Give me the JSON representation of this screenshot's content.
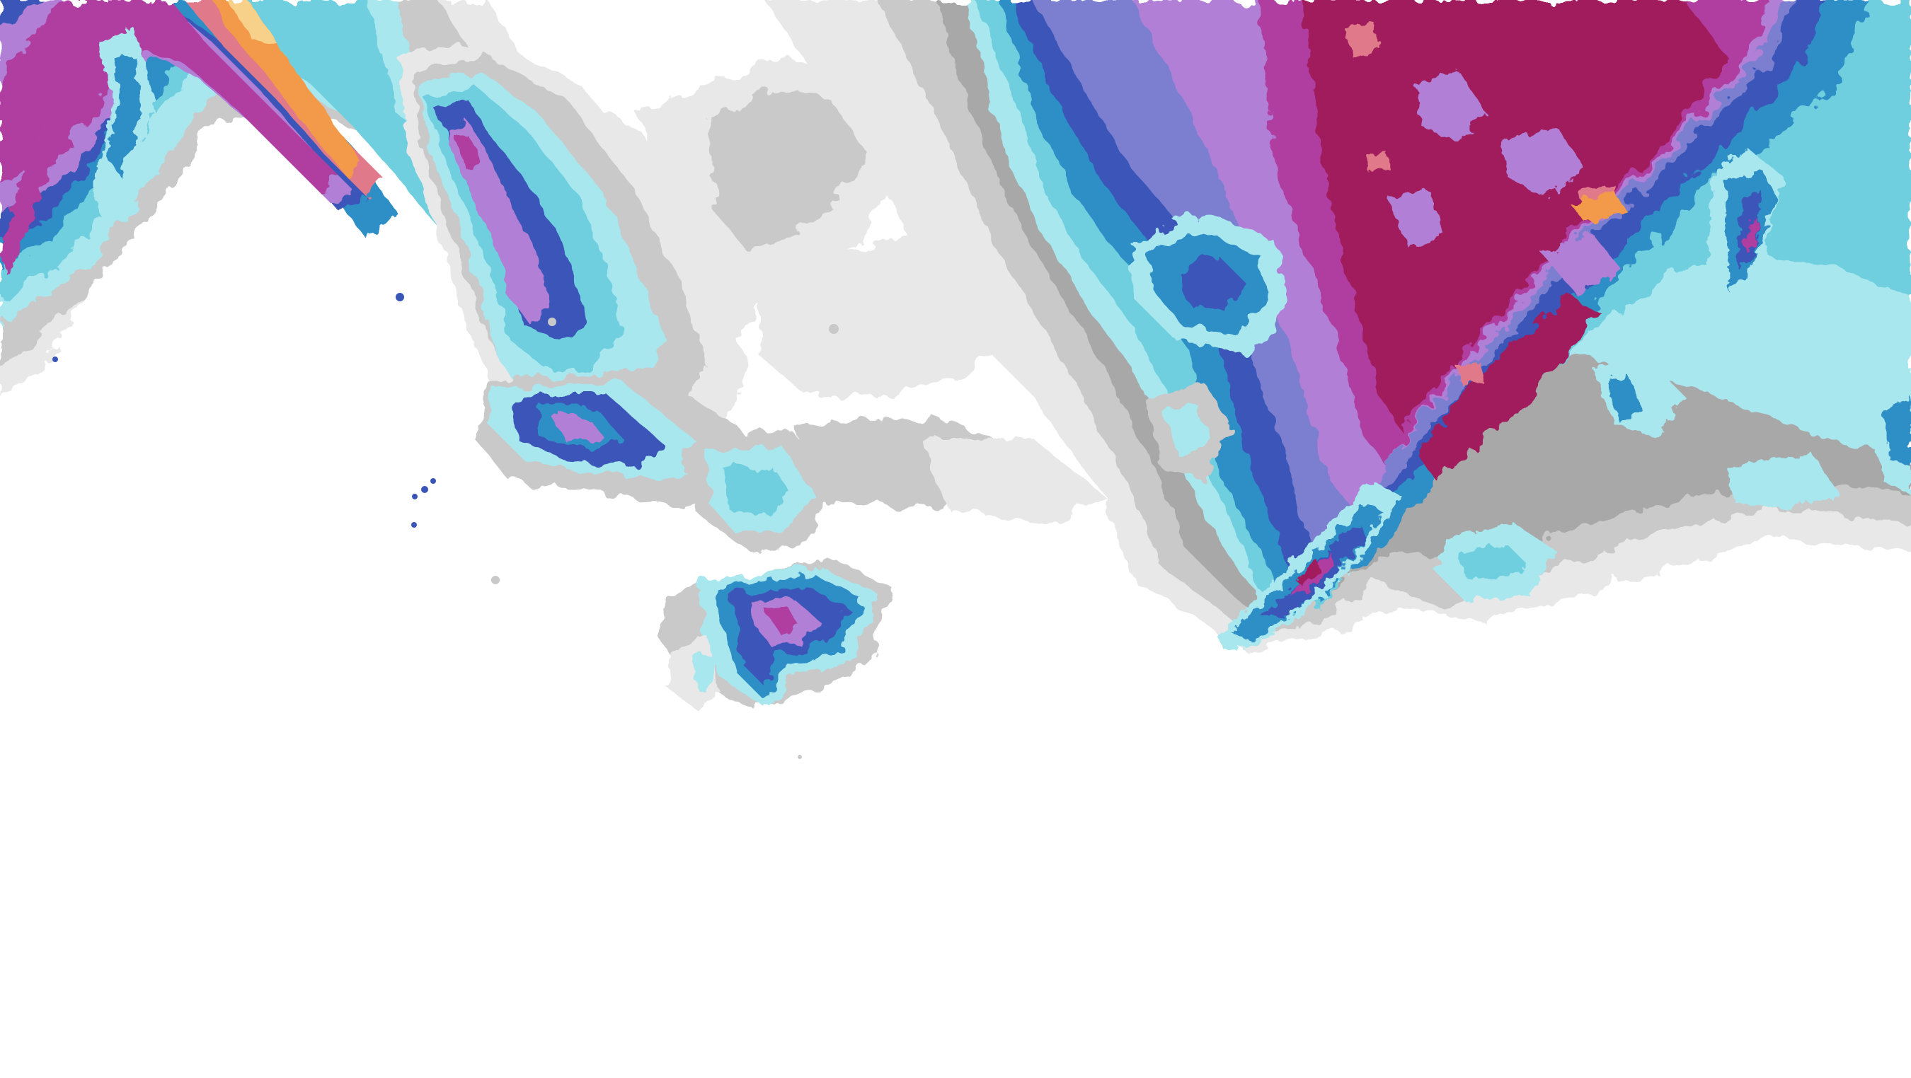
{
  "map": {
    "layer": "precipitation-contour-overlay",
    "legend_visible": false,
    "text_labels": [],
    "color_scale": [
      {
        "level": 1,
        "color": "#e8e8e8"
      },
      {
        "level": 2,
        "color": "#c9c9c9"
      },
      {
        "level": 3,
        "color": "#a8a8a8"
      },
      {
        "level": 4,
        "color": "#a9e7ef"
      },
      {
        "level": 5,
        "color": "#6fcfdf"
      },
      {
        "level": 6,
        "color": "#2f8fc6"
      },
      {
        "level": 7,
        "color": "#3a55b8"
      },
      {
        "level": 8,
        "color": "#7b7fd0"
      },
      {
        "level": 9,
        "color": "#b27fd6"
      },
      {
        "level": 10,
        "color": "#b03ca0"
      },
      {
        "level": 11,
        "color": "#a11a5c"
      },
      {
        "level": 12,
        "color": "#e07a8a"
      },
      {
        "level": 13,
        "color": "#f29a4a"
      },
      {
        "level": 14,
        "color": "#f7d08a"
      }
    ]
  }
}
